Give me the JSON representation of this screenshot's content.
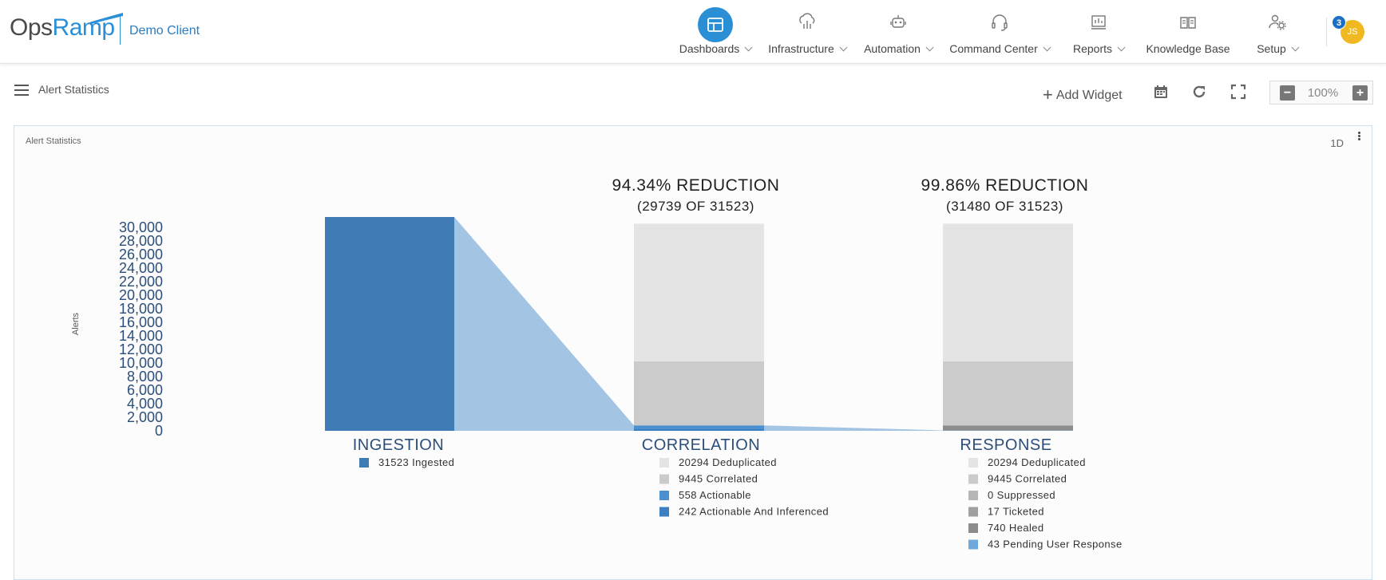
{
  "header": {
    "logo_part1": "Ops",
    "logo_part2": "Ramp",
    "client_name": "Demo Client",
    "nav": [
      {
        "label": "Dashboards",
        "icon": "dashboard-icon",
        "active": true,
        "dropdown": true
      },
      {
        "label": "Infrastructure",
        "icon": "cloud-infrastructure-icon",
        "active": false,
        "dropdown": true
      },
      {
        "label": "Automation",
        "icon": "robot-icon",
        "active": false,
        "dropdown": true
      },
      {
        "label": "Command Center",
        "icon": "headset-icon",
        "active": false,
        "dropdown": true
      },
      {
        "label": "Reports",
        "icon": "reports-icon",
        "active": false,
        "dropdown": true
      },
      {
        "label": "Knowledge Base",
        "icon": "book-icon",
        "active": false,
        "dropdown": false
      },
      {
        "label": "Setup",
        "icon": "gear-user-icon",
        "active": false,
        "dropdown": true
      }
    ],
    "user_initials": "JS",
    "notification_count": "3"
  },
  "subheader": {
    "title": "Alert Statistics",
    "add_widget_label": "Add Widget",
    "zoom_value": "100%"
  },
  "widget": {
    "title": "Alert Statistics",
    "range": "1D"
  },
  "colors": {
    "accent": "#2b8fd6",
    "ingest_bar": "#3f7bb4",
    "funnel": "#a3c4e3",
    "light_gray": "#e4e4e4",
    "mid_gray": "#cbcbcb",
    "dark_gray": "#8c8c8c",
    "blue": "#4a8fcf",
    "stack_blue": "#3a7fc2",
    "axis_text": "#2c4e7a"
  },
  "chart_data": {
    "type": "bar",
    "title": "Alert Statistics",
    "ylabel": "Alerts",
    "ylim": [
      0,
      31523
    ],
    "yticks": [
      0,
      2000,
      4000,
      6000,
      8000,
      10000,
      12000,
      14000,
      16000,
      18000,
      20000,
      22000,
      24000,
      26000,
      28000,
      30000
    ],
    "ytick_labels": [
      "0",
      "2,000",
      "4,000",
      "6,000",
      "8,000",
      "10,000",
      "12,000",
      "14,000",
      "16,000",
      "18,000",
      "20,000",
      "22,000",
      "24,000",
      "26,000",
      "28,000",
      "30,000"
    ],
    "stages": [
      {
        "name": "INGESTION",
        "total": 31523,
        "segments": [
          {
            "label": "31523 Ingested",
            "value": 31523,
            "color": "#3f7bb4"
          }
        ]
      },
      {
        "name": "CORRELATION",
        "reduction_text": "94.34% REDUCTION",
        "reduction_detail": "(29739 OF 31523)",
        "total": 30539,
        "segments": [
          {
            "label": "20294 Deduplicated",
            "value": 20294,
            "color": "#e4e4e4"
          },
          {
            "label": "9445 Correlated",
            "value": 9445,
            "color": "#cbcbcb"
          },
          {
            "label": "558 Actionable",
            "value": 558,
            "color": "#4a8fcf"
          },
          {
            "label": "242 Actionable And Inferenced",
            "value": 242,
            "color": "#3a7fc2"
          }
        ]
      },
      {
        "name": "RESPONSE",
        "reduction_text": "99.86% REDUCTION",
        "reduction_detail": "(31480 OF 31523)",
        "total": 30539,
        "segments": [
          {
            "label": "20294 Deduplicated",
            "value": 20294,
            "color": "#e4e4e4"
          },
          {
            "label": "9445 Correlated",
            "value": 9445,
            "color": "#cbcbcb"
          },
          {
            "label": "0 Suppressed",
            "value": 0,
            "color": "#b5b5b5"
          },
          {
            "label": "17 Ticketed",
            "value": 17,
            "color": "#a0a0a0"
          },
          {
            "label": "740 Healed",
            "value": 740,
            "color": "#8c8c8c"
          },
          {
            "label": "43 Pending User Response",
            "value": 43,
            "color": "#6fa8dc"
          }
        ]
      }
    ]
  }
}
